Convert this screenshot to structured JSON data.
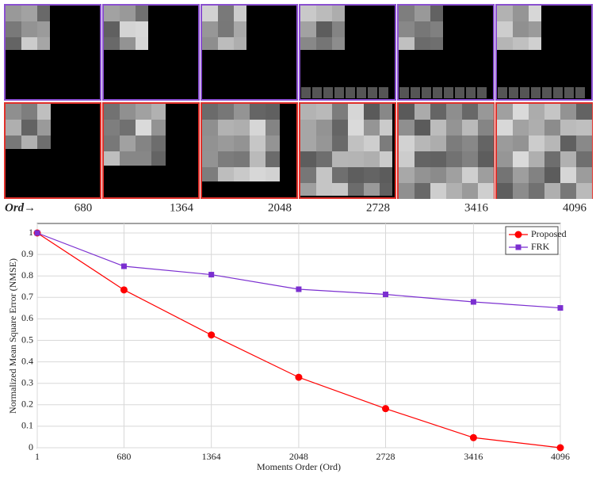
{
  "chart_data": {
    "type": "line",
    "image_row_label": "Ord→",
    "xlabel": "Moments Order (Ord)",
    "ylabel": "Normalized Mean Square Error (NMSE)",
    "x": [
      1,
      680,
      1364,
      2048,
      2728,
      3416,
      4096
    ],
    "xlim": [
      1,
      4096
    ],
    "xticks": [
      1,
      680,
      1364,
      2048,
      2728,
      3416,
      4096
    ],
    "ylim": [
      0,
      1
    ],
    "yticks": [
      0,
      0.1,
      0.2,
      0.3,
      0.4,
      0.5,
      0.6,
      0.7,
      0.8,
      0.9,
      1
    ],
    "grid": true,
    "legend": "upper right",
    "series": [
      {
        "name": "Proposed",
        "color": "#ff0000",
        "marker": "circle",
        "values": [
          1,
          0.735,
          0.525,
          0.328,
          0.182,
          0.047,
          0
        ]
      },
      {
        "name": "FRK",
        "color": "#7b2fd0",
        "marker": "square",
        "values": [
          1,
          0.845,
          0.806,
          0.738,
          0.714,
          0.679,
          0.651
        ]
      }
    ]
  }
}
